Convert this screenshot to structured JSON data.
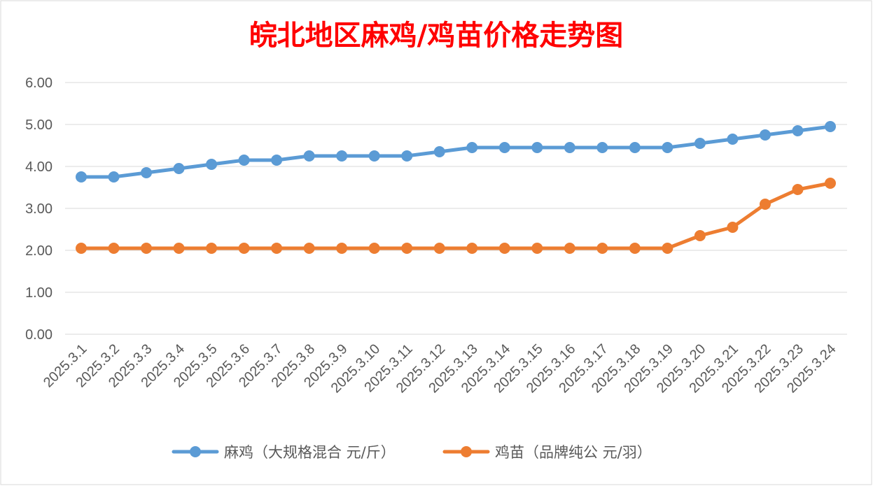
{
  "chart_data": {
    "type": "line",
    "title": "皖北地区麻鸡/鸡苗价格走势图",
    "xlabel": "",
    "ylabel": "",
    "categories": [
      "2025.3.1",
      "2025.3.2",
      "2025.3.3",
      "2025.3.4",
      "2025.3.5",
      "2025.3.6",
      "2025.3.7",
      "2025.3.8",
      "2025.3.9",
      "2025.3.10",
      "2025.3.11",
      "2025.3.12",
      "2025.3.13",
      "2025.3.14",
      "2025.3.15",
      "2025.3.16",
      "2025.3.17",
      "2025.3.18",
      "2025.3.19",
      "2025.3.20",
      "2025.3.21",
      "2025.3.22",
      "2025.3.23",
      "2025.3.24"
    ],
    "y_ticks": [
      "0.00",
      "1.00",
      "2.00",
      "3.00",
      "4.00",
      "5.00",
      "6.00"
    ],
    "ylim": [
      0,
      6
    ],
    "grid": true,
    "legend_position": "bottom",
    "series": [
      {
        "name": "麻鸡（大规格混合 元/斤）",
        "color": "#5B9BD5",
        "values": [
          3.75,
          3.75,
          3.85,
          3.95,
          4.05,
          4.15,
          4.15,
          4.25,
          4.25,
          4.25,
          4.25,
          4.35,
          4.45,
          4.45,
          4.45,
          4.45,
          4.45,
          4.45,
          4.45,
          4.55,
          4.65,
          4.75,
          4.85,
          4.95
        ]
      },
      {
        "name": "鸡苗（品牌纯公 元/羽）",
        "color": "#ED7D31",
        "values": [
          2.05,
          2.05,
          2.05,
          2.05,
          2.05,
          2.05,
          2.05,
          2.05,
          2.05,
          2.05,
          2.05,
          2.05,
          2.05,
          2.05,
          2.05,
          2.05,
          2.05,
          2.05,
          2.05,
          2.35,
          2.55,
          3.1,
          3.45,
          3.6
        ]
      }
    ],
    "title_color": "#FF0000"
  }
}
